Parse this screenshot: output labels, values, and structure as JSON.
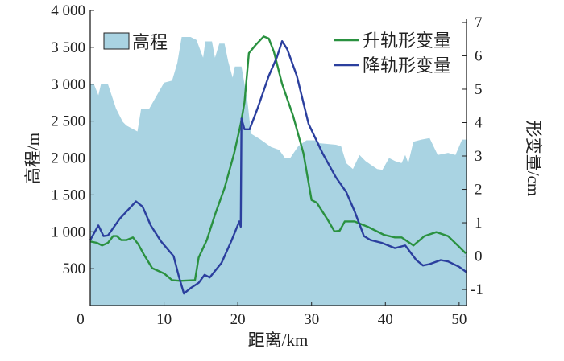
{
  "chart_data": {
    "type": "line",
    "title": "",
    "xlabel": "距离/km",
    "ylabel_left": "高程/m",
    "ylabel_right": "形变量/cm",
    "xlim": [
      0,
      51
    ],
    "ylim_left": [
      0,
      4000
    ],
    "ylim_right": [
      -1.48,
      7.36
    ],
    "x_ticks": [
      0,
      10,
      20,
      30,
      40,
      50
    ],
    "x_tick_labels": [
      "0",
      "10",
      "20",
      "30",
      "40",
      "50"
    ],
    "y_left_ticks": [
      500,
      1000,
      1500,
      2000,
      2500,
      3000,
      3500,
      4000
    ],
    "y_left_tick_labels": [
      "500",
      "1 000",
      "1 500",
      "2 000",
      "2 500",
      "3 000",
      "3 500",
      "4 000"
    ],
    "y_right_ticks": [
      -1,
      0,
      1,
      2,
      3,
      4,
      5,
      6,
      7
    ],
    "y_right_tick_labels": [
      "-1",
      "0",
      "1",
      "2",
      "3",
      "4",
      "5",
      "6",
      "7"
    ],
    "grid": false,
    "legend": {
      "area_placement": "top-left",
      "lines_placement": "top-right"
    },
    "series": [
      {
        "name": "高程",
        "type": "area",
        "axis": "left",
        "color": "#a9d3e2",
        "x": [
          0,
          0.5,
          1.1,
          1.45,
          2.4,
          3.5,
          4.4,
          4.9,
          6.4,
          6.9,
          8,
          10,
          11.1,
          11.8,
          12.4,
          13.6,
          14.4,
          15.3,
          15.6,
          16.5,
          16.9,
          17.5,
          18.2,
          18.7,
          19.3,
          19.6,
          20.5,
          21.3,
          21.8,
          23.1,
          24.5,
          25.6,
          26.4,
          27.1,
          28.2,
          29.3,
          30.4,
          31.1,
          33.3,
          34,
          34.7,
          35.6,
          36.5,
          37.3,
          38,
          38.9,
          39.6,
          40.5,
          41.3,
          42.2,
          42.7,
          43.1,
          43.8,
          44.9,
          46,
          47.1,
          48.5,
          49.5,
          50.4,
          51
        ],
        "y": [
          3000,
          3000,
          2850,
          3000,
          3000,
          2670,
          2490,
          2440,
          2360,
          2670,
          2670,
          3020,
          3050,
          3290,
          3640,
          3640,
          3600,
          3360,
          3580,
          3580,
          3360,
          3550,
          3550,
          3310,
          3090,
          3240,
          3240,
          2780,
          2330,
          2250,
          2150,
          2110,
          2000,
          2000,
          2160,
          2240,
          2240,
          2200,
          2180,
          2160,
          1930,
          1850,
          2040,
          1960,
          1910,
          1850,
          1840,
          2000,
          1960,
          1930,
          2040,
          1930,
          2220,
          2250,
          2270,
          2040,
          2070,
          2040,
          2250,
          2250
        ]
      },
      {
        "name": "升轨形变量",
        "type": "line",
        "axis": "right",
        "color": "#2a9140",
        "x": [
          0,
          0.9,
          1.6,
          2.4,
          3.1,
          3.6,
          4.2,
          4.9,
          5.8,
          6.5,
          7.3,
          8.4,
          10,
          11.1,
          12.2,
          14.2,
          14.7,
          15.8,
          16.9,
          18.2,
          19.5,
          20.4,
          20.9,
          21.5,
          22.4,
          23.5,
          24.2,
          24.9,
          26,
          27.5,
          28.9,
          30,
          30.7,
          32.2,
          33.1,
          33.8,
          34.5,
          35.8,
          37.6,
          39.8,
          41.3,
          42.2,
          43.8,
          45.3,
          46.9,
          48.5,
          50,
          50.9
        ],
        "y": [
          0.44,
          0.4,
          0.32,
          0.4,
          0.6,
          0.6,
          0.48,
          0.48,
          0.56,
          0.36,
          0.04,
          -0.36,
          -0.52,
          -0.72,
          -0.74,
          -0.72,
          -0.04,
          0.48,
          1.24,
          2.04,
          3.08,
          3.96,
          4.6,
          6.08,
          6.32,
          6.58,
          6.52,
          6.12,
          5.16,
          4.2,
          3.08,
          1.68,
          1.6,
          1.08,
          0.74,
          0.76,
          1.04,
          1.04,
          0.88,
          0.64,
          0.56,
          0.56,
          0.32,
          0.6,
          0.72,
          0.6,
          0.28,
          0.08
        ]
      },
      {
        "name": "降轨形变量",
        "type": "line",
        "axis": "right",
        "color": "#2b3f9e",
        "x": [
          0,
          1.1,
          1.8,
          2.4,
          4,
          6.2,
          7.1,
          8.2,
          9.6,
          11.3,
          12,
          12.7,
          13.6,
          14.7,
          15.5,
          16.2,
          17.8,
          19.1,
          20.2,
          20.4,
          20.5,
          20.9,
          21.6,
          22.7,
          24.2,
          25.3,
          26,
          26.7,
          28,
          29.6,
          31.5,
          33.3,
          34.7,
          35.8,
          37.1,
          38,
          39.5,
          41.3,
          42.7,
          44.2,
          45.1,
          46,
          47.5,
          48.5,
          50,
          51
        ],
        "y": [
          0.48,
          0.92,
          0.6,
          0.62,
          1.12,
          1.64,
          1.48,
          0.92,
          0.44,
          0,
          -0.6,
          -1.12,
          -0.96,
          -0.8,
          -0.56,
          -0.64,
          -0.2,
          0.44,
          1.04,
          0.88,
          4.12,
          3.8,
          3.8,
          4.44,
          5.4,
          5.96,
          6.44,
          6.2,
          5.4,
          3.96,
          3.08,
          2.36,
          1.92,
          1.36,
          0.6,
          0.48,
          0.4,
          0.24,
          0.32,
          -0.12,
          -0.28,
          -0.24,
          -0.12,
          -0.16,
          -0.32,
          -0.48
        ]
      }
    ]
  }
}
